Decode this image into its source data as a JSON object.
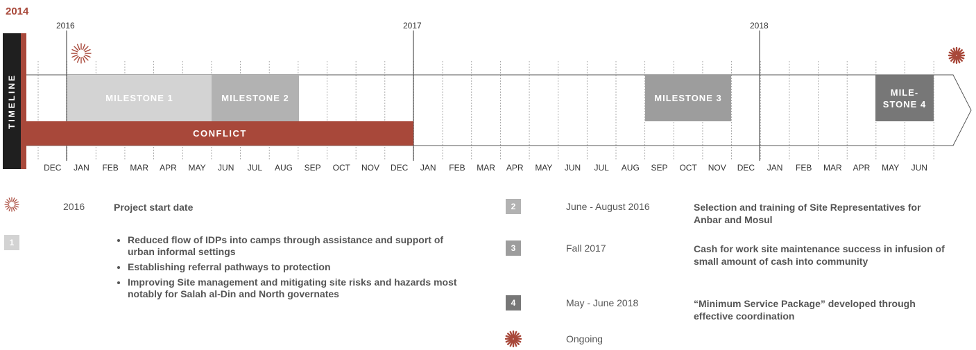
{
  "header": {
    "year_main": "2014"
  },
  "years": [
    {
      "label": "2016"
    },
    {
      "label": "2017"
    },
    {
      "label": "2018"
    }
  ],
  "timeline_label": "TIMELINE",
  "months": [
    "DEC",
    "JAN",
    "FEB",
    "MAR",
    "APR",
    "MAY",
    "JUN",
    "JUL",
    "AUG",
    "SEP",
    "OCT",
    "NOV",
    "DEC",
    "JAN",
    "FEB",
    "MAR",
    "APR",
    "MAY",
    "JUN",
    "JUL",
    "AUG",
    "SEP",
    "OCT",
    "NOV",
    "DEC",
    "JAN",
    "FEB",
    "MAR",
    "APR",
    "MAY",
    "JUN"
  ],
  "milestones": {
    "m1": "MILESTONE 1",
    "m2": "MILESTONE 2",
    "m3": "MILESTONE 3",
    "m4_line1": "MILE-",
    "m4_line2": "STONE 4"
  },
  "conflict": "CONFLICT",
  "colors": {
    "accent": "#a8483a",
    "dark": "#1f1f1f",
    "m1": "#d3d3d3",
    "m2": "#b2b2b2",
    "m3": "#9d9d9d",
    "m4": "#777777"
  },
  "legend": {
    "start": {
      "icon": "starburst-outline-icon",
      "date": "2016",
      "desc": "Project start date"
    },
    "one": {
      "num": "1",
      "bullets": [
        "Reduced flow of IDPs into camps through assistance and support of urban informal settings",
        "Establishing referral pathways to protection",
        "Improving Site management and mitigating site risks and hazards most notably for Salah al-Din and North governates"
      ]
    },
    "two": {
      "num": "2",
      "date": "June - August 2016",
      "desc": "Selection and training of Site Representatives for Anbar and Mosul"
    },
    "three": {
      "num": "3",
      "date": "Fall 2017",
      "desc": "Cash for work site maintenance success in infusion of small amount of cash into community"
    },
    "four": {
      "num": "4",
      "date": "May - June 2018",
      "desc": "“Minimum Service Package” developed through effective coordination"
    },
    "ongoing": {
      "icon": "starburst-solid-icon",
      "label": "Ongoing"
    }
  }
}
